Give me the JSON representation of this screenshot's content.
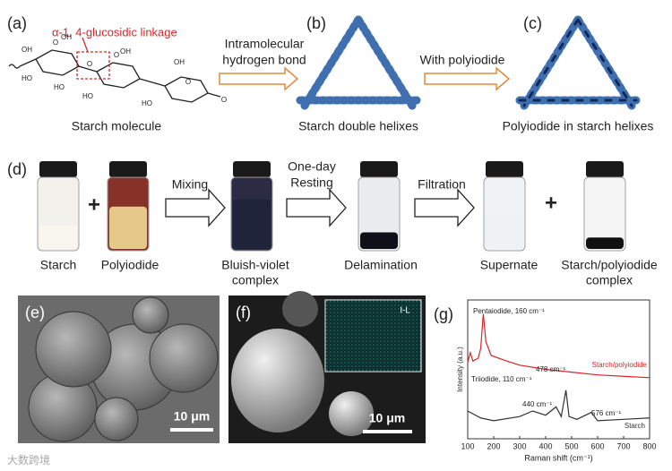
{
  "top": {
    "a_label": "(a)",
    "linkage_label": "α-1, 4-glucosidic linkage",
    "a_caption": "Starch molecule",
    "molecule_labels": [
      "OH",
      "O",
      "HO",
      "HO",
      "OH",
      "O",
      "HO",
      "OH",
      "O",
      "HO",
      "OH",
      "O",
      "O"
    ],
    "arrow1_text": [
      "Intramolecular",
      "hydrogen bond"
    ],
    "b_label": "(b)",
    "b_caption": "Starch double helixes",
    "arrow2_text": "With polyiodide",
    "c_label": "(c)",
    "c_caption": "Polyiodide in starch helixes"
  },
  "process": {
    "label": "(d)",
    "captions": [
      [
        "Starch"
      ],
      [
        "Polyiodide"
      ],
      [
        "Bluish-violet",
        "complex"
      ],
      [
        "Delamination"
      ],
      [
        "Supernate"
      ],
      [
        "Starch/polyiodide",
        "complex"
      ]
    ],
    "arrow_texts": [
      [
        "Mixing"
      ],
      [
        "One-day",
        "Resting"
      ],
      [
        "Filtration"
      ]
    ],
    "plus_signs": [
      "+",
      "+"
    ]
  },
  "sem": {
    "e_label": "(e)",
    "e_scale": "10 μm",
    "f_label": "(f)",
    "f_scale": "10 μm",
    "inset_label": "I-L"
  },
  "watermark": "大数跨境",
  "chart_data": {
    "type": "line",
    "panel_label": "(g)",
    "x_label": "Raman shift (cm⁻¹)",
    "y_label": "Intensity (a.u.)",
    "xlim": [
      100,
      800
    ],
    "xticks": [
      100,
      200,
      300,
      400,
      500,
      600,
      700,
      800
    ],
    "ylim": [
      0,
      10
    ],
    "series": [
      {
        "name": "Starch/polyiodide",
        "color": "#d62728",
        "x": [
          100,
          110,
          120,
          140,
          150,
          160,
          170,
          190,
          250,
          300,
          400,
          500,
          600,
          700,
          800
        ],
        "values": [
          5.5,
          6.2,
          5.6,
          5.8,
          6.5,
          9.0,
          7.0,
          6.0,
          5.6,
          5.3,
          5.0,
          4.8,
          4.6,
          4.5,
          4.4
        ]
      },
      {
        "name": "Starch",
        "color": "#333333",
        "x": [
          100,
          150,
          200,
          300,
          350,
          400,
          440,
          460,
          478,
          490,
          520,
          576,
          600,
          700,
          800
        ],
        "values": [
          2.0,
          1.5,
          1.3,
          1.6,
          2.0,
          1.7,
          2.3,
          1.6,
          3.5,
          1.6,
          1.4,
          1.9,
          1.3,
          1.4,
          1.5
        ]
      }
    ],
    "annotations": [
      "Pentaiodide, 160 cm⁻¹",
      "Triiodide, 110 cm⁻¹",
      "478 cm⁻¹",
      "440 cm⁻¹",
      "576 cm⁻¹"
    ]
  }
}
